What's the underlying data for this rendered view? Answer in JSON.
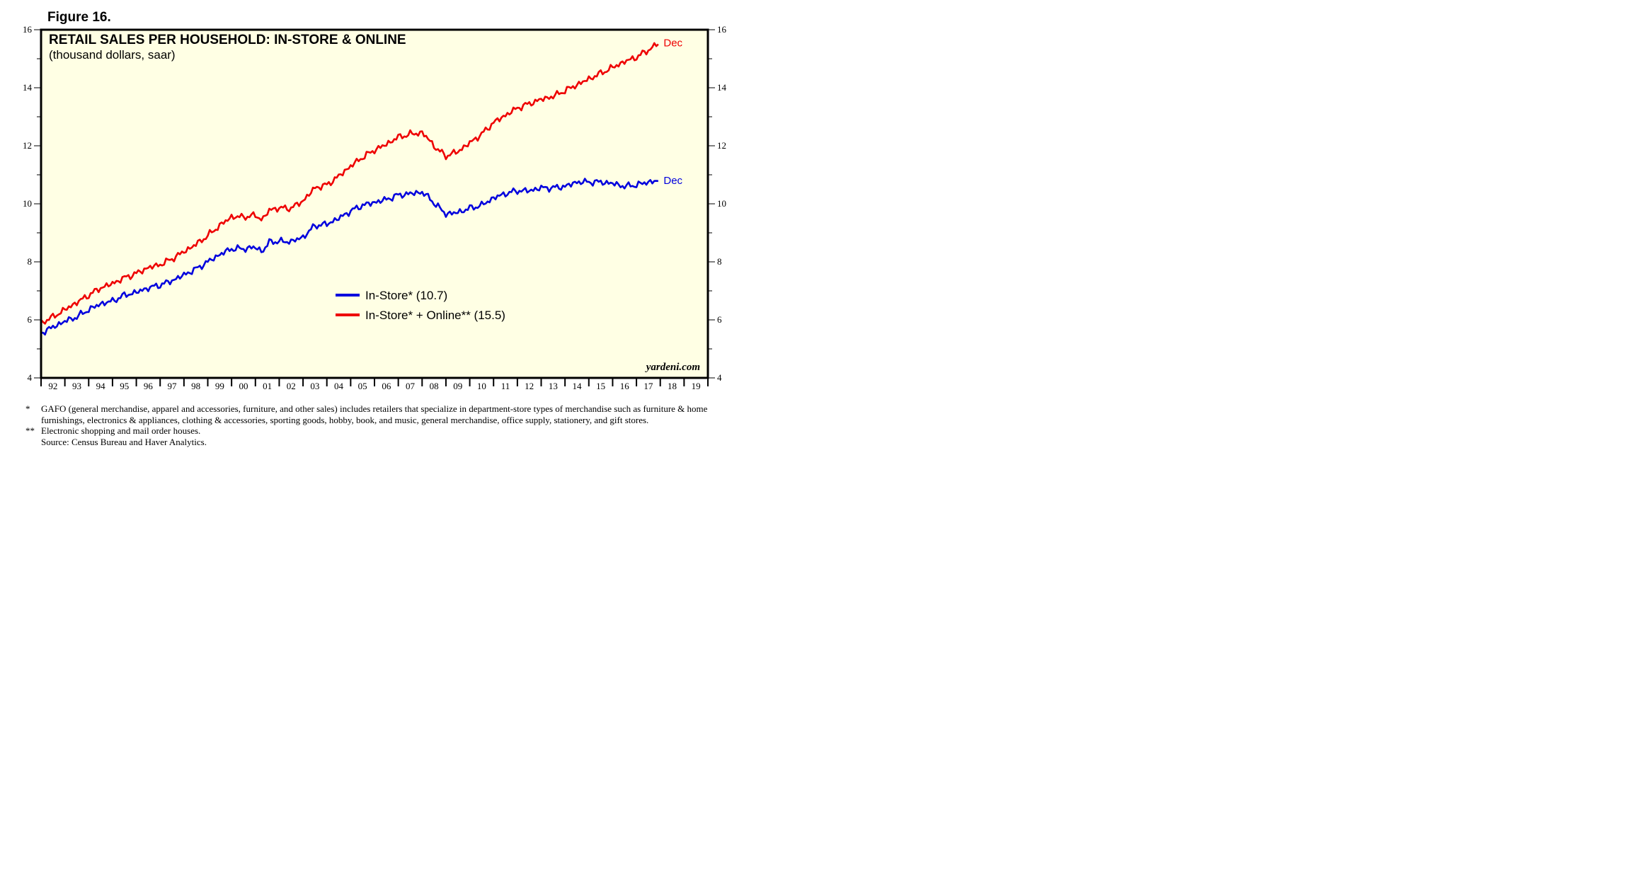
{
  "figure_label": "Figure 16.",
  "watermark": "yardeni.com",
  "footnotes": [
    {
      "mark": "*",
      "text": "GAFO (general merchandise, apparel and accessories, furniture, and other sales) includes retailers that specialize in department-store types of merchandise such as furniture & home furnishings, electronics & appliances, clothing & accessories, sporting goods, hobby, book, and music, general merchandise, office supply, stationery, and gift stores."
    },
    {
      "mark": "**",
      "text": "Electronic shopping and mail order houses."
    },
    {
      "mark": "",
      "text": "Source: Census Bureau and Haver Analytics."
    }
  ],
  "colors": {
    "background": "#FFFFE4",
    "in_store": "#0000DD",
    "online": "#EE0000"
  },
  "chart_data": {
    "type": "line",
    "title": "RETAIL SALES PER HOUSEHOLD: IN-STORE & ONLINE",
    "subtitle": "(thousand dollars, saar)",
    "xlabel": "",
    "ylabel": "",
    "x_tick_labels": [
      "92",
      "93",
      "94",
      "95",
      "96",
      "97",
      "98",
      "99",
      "00",
      "01",
      "02",
      "03",
      "04",
      "05",
      "06",
      "07",
      "08",
      "09",
      "10",
      "11",
      "12",
      "13",
      "14",
      "15",
      "16",
      "17",
      "18",
      "19"
    ],
    "xlim": [
      1992.0,
      2020.0
    ],
    "ylim": [
      4,
      16
    ],
    "y_ticks": [
      4,
      6,
      8,
      10,
      12,
      14,
      16
    ],
    "grid": false,
    "legend_position": "center",
    "series": [
      {
        "name": "In-Store* (10.7)",
        "end_label": "Dec",
        "color": "#0000DD",
        "points": [
          [
            1992.0,
            5.55
          ],
          [
            1992.5,
            5.75
          ],
          [
            1993.0,
            5.95
          ],
          [
            1993.5,
            6.1
          ],
          [
            1994.0,
            6.35
          ],
          [
            1994.5,
            6.55
          ],
          [
            1995.0,
            6.65
          ],
          [
            1995.5,
            6.85
          ],
          [
            1996.0,
            6.95
          ],
          [
            1996.5,
            7.1
          ],
          [
            1997.0,
            7.2
          ],
          [
            1997.5,
            7.35
          ],
          [
            1998.0,
            7.55
          ],
          [
            1998.5,
            7.75
          ],
          [
            1999.0,
            8.0
          ],
          [
            1999.5,
            8.25
          ],
          [
            2000.0,
            8.45
          ],
          [
            2000.5,
            8.45
          ],
          [
            2001.0,
            8.5
          ],
          [
            2001.3,
            8.35
          ],
          [
            2001.6,
            8.7
          ],
          [
            2002.0,
            8.7
          ],
          [
            2002.5,
            8.7
          ],
          [
            2003.0,
            8.85
          ],
          [
            2003.5,
            9.25
          ],
          [
            2004.0,
            9.3
          ],
          [
            2004.5,
            9.5
          ],
          [
            2005.0,
            9.75
          ],
          [
            2005.5,
            9.95
          ],
          [
            2006.0,
            10.05
          ],
          [
            2006.5,
            10.15
          ],
          [
            2007.0,
            10.3
          ],
          [
            2007.5,
            10.35
          ],
          [
            2008.0,
            10.4
          ],
          [
            2008.3,
            10.2
          ],
          [
            2008.6,
            9.95
          ],
          [
            2009.0,
            9.65
          ],
          [
            2009.5,
            9.7
          ],
          [
            2010.0,
            9.85
          ],
          [
            2010.5,
            9.95
          ],
          [
            2011.0,
            10.2
          ],
          [
            2011.5,
            10.35
          ],
          [
            2012.0,
            10.45
          ],
          [
            2012.5,
            10.45
          ],
          [
            2013.0,
            10.55
          ],
          [
            2013.5,
            10.55
          ],
          [
            2014.0,
            10.6
          ],
          [
            2014.5,
            10.75
          ],
          [
            2015.0,
            10.75
          ],
          [
            2015.5,
            10.75
          ],
          [
            2016.0,
            10.7
          ],
          [
            2016.5,
            10.6
          ],
          [
            2017.0,
            10.65
          ],
          [
            2017.5,
            10.75
          ],
          [
            2017.96,
            10.8
          ]
        ]
      },
      {
        "name": "In-Store* + Online** (15.5)",
        "end_label": "Dec",
        "color": "#EE0000",
        "points": [
          [
            1992.0,
            5.9
          ],
          [
            1992.5,
            6.1
          ],
          [
            1993.0,
            6.35
          ],
          [
            1993.5,
            6.6
          ],
          [
            1994.0,
            6.85
          ],
          [
            1994.5,
            7.1
          ],
          [
            1995.0,
            7.25
          ],
          [
            1995.5,
            7.45
          ],
          [
            1996.0,
            7.6
          ],
          [
            1996.5,
            7.8
          ],
          [
            1997.0,
            7.9
          ],
          [
            1997.5,
            8.1
          ],
          [
            1998.0,
            8.35
          ],
          [
            1998.5,
            8.6
          ],
          [
            1999.0,
            8.9
          ],
          [
            1999.5,
            9.25
          ],
          [
            2000.0,
            9.55
          ],
          [
            2000.5,
            9.55
          ],
          [
            2001.0,
            9.6
          ],
          [
            2001.3,
            9.45
          ],
          [
            2001.6,
            9.8
          ],
          [
            2002.0,
            9.85
          ],
          [
            2002.5,
            9.85
          ],
          [
            2003.0,
            10.1
          ],
          [
            2003.5,
            10.55
          ],
          [
            2004.0,
            10.65
          ],
          [
            2004.5,
            10.95
          ],
          [
            2005.0,
            11.3
          ],
          [
            2005.5,
            11.6
          ],
          [
            2006.0,
            11.85
          ],
          [
            2006.5,
            12.05
          ],
          [
            2007.0,
            12.3
          ],
          [
            2007.5,
            12.4
          ],
          [
            2008.0,
            12.45
          ],
          [
            2008.3,
            12.2
          ],
          [
            2008.6,
            11.9
          ],
          [
            2009.0,
            11.65
          ],
          [
            2009.5,
            11.8
          ],
          [
            2010.0,
            12.1
          ],
          [
            2010.5,
            12.4
          ],
          [
            2011.0,
            12.8
          ],
          [
            2011.5,
            13.05
          ],
          [
            2012.0,
            13.3
          ],
          [
            2012.5,
            13.45
          ],
          [
            2013.0,
            13.6
          ],
          [
            2013.5,
            13.7
          ],
          [
            2014.0,
            13.9
          ],
          [
            2014.5,
            14.1
          ],
          [
            2015.0,
            14.3
          ],
          [
            2015.5,
            14.5
          ],
          [
            2016.0,
            14.7
          ],
          [
            2016.5,
            14.9
          ],
          [
            2017.0,
            15.05
          ],
          [
            2017.5,
            15.3
          ],
          [
            2017.96,
            15.55
          ]
        ]
      }
    ]
  }
}
